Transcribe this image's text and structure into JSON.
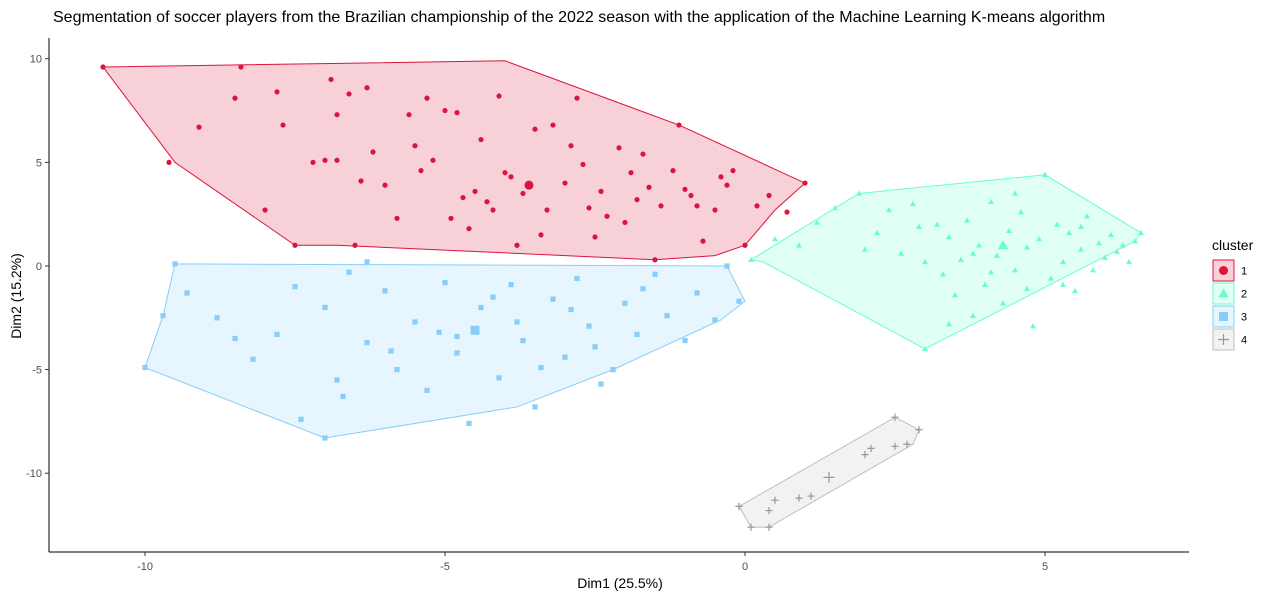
{
  "chart_data": {
    "type": "scatter",
    "title": "Segmentation of soccer players from the Brazilian championship of the 2022 season with the application of the Machine Learning K-means algorithm",
    "xlabel": "Dim1 (25.5%)",
    "ylabel": "Dim2 (15.2%)",
    "xlim": [
      -11.6,
      7.4
    ],
    "ylim": [
      -13.8,
      11.0
    ],
    "x_ticks": [
      -10,
      -5,
      0,
      5
    ],
    "x_tick_labels": [
      "-10",
      "-5",
      "0",
      "5"
    ],
    "y_ticks": [
      -10,
      -5,
      0,
      5,
      10
    ],
    "y_tick_labels": [
      "-10",
      "-5",
      "0",
      "5",
      "10"
    ],
    "grid": false,
    "legend": {
      "title": "cluster",
      "placement": "right"
    },
    "series": [
      {
        "name": "1",
        "color": "#DC143C",
        "marker": "circle",
        "hull": [
          [
            -10.7,
            9.6
          ],
          [
            -4,
            9.9
          ],
          [
            -1.1,
            6.8
          ],
          [
            1,
            4
          ],
          [
            0.5,
            2.7
          ],
          [
            0,
            1
          ],
          [
            -0.5,
            0.5
          ],
          [
            -1.5,
            0.3
          ],
          [
            -4.5,
            0.7
          ],
          [
            -6.8,
            1
          ],
          [
            -7.5,
            1
          ],
          [
            -9.5,
            5
          ]
        ],
        "centroid": [
          -3.6,
          3.9
        ],
        "points": [
          [
            -10.7,
            9.6
          ],
          [
            -9.6,
            5
          ],
          [
            -9.1,
            6.7
          ],
          [
            -8.5,
            8.1
          ],
          [
            -8.4,
            9.6
          ],
          [
            -8.0,
            2.7
          ],
          [
            -7.8,
            8.4
          ],
          [
            -7.7,
            6.8
          ],
          [
            -7.5,
            1
          ],
          [
            -7.2,
            5
          ],
          [
            -7.0,
            5.1
          ],
          [
            -6.9,
            9
          ],
          [
            -6.8,
            5.1
          ],
          [
            -6.8,
            7.3
          ],
          [
            -6.6,
            8.3
          ],
          [
            -6.5,
            1
          ],
          [
            -6.3,
            8.6
          ],
          [
            -6.2,
            5.5
          ],
          [
            -6.0,
            3.9
          ],
          [
            -5.8,
            2.3
          ],
          [
            -5.6,
            7.3
          ],
          [
            -5.5,
            5.8
          ],
          [
            -5.3,
            8.1
          ],
          [
            -5.2,
            5.1
          ],
          [
            -5.0,
            7.5
          ],
          [
            -4.8,
            7.4
          ],
          [
            -4.5,
            3.6
          ],
          [
            -4.3,
            3.1
          ],
          [
            -4.1,
            8.2
          ],
          [
            -4.0,
            4.5
          ],
          [
            -3.7,
            3.5
          ],
          [
            -3.5,
            6.6
          ],
          [
            -3.4,
            1.5
          ],
          [
            -3.2,
            6.8
          ],
          [
            -2.8,
            8.1
          ],
          [
            -2.6,
            2.8
          ],
          [
            -2.3,
            2.4
          ],
          [
            -2.1,
            5.7
          ],
          [
            -1.9,
            4.5
          ],
          [
            -1.6,
            3.8
          ],
          [
            -1.4,
            2.9
          ],
          [
            -1.1,
            6.8
          ],
          [
            -0.9,
            3.4
          ],
          [
            -0.7,
            1.2
          ],
          [
            -0.5,
            2.7
          ],
          [
            -0.3,
            3.9
          ],
          [
            0,
            1
          ],
          [
            0.2,
            2.9
          ],
          [
            0.4,
            3.4
          ],
          [
            0.7,
            2.6
          ],
          [
            1,
            4
          ],
          [
            -4.9,
            2.3
          ],
          [
            -4.4,
            6.1
          ],
          [
            -3.9,
            4.3
          ],
          [
            -3.3,
            2.7
          ],
          [
            -2.9,
            5.8
          ],
          [
            -2.4,
            3.6
          ],
          [
            -1.8,
            3.2
          ],
          [
            -1.2,
            4.6
          ],
          [
            -0.4,
            4.3
          ],
          [
            -4.6,
            1.8
          ],
          [
            -3.6,
            3.9
          ],
          [
            -2.7,
            4.9
          ],
          [
            -1.7,
            5.4
          ],
          [
            -0.8,
            2.9
          ],
          [
            -5.4,
            4.6
          ],
          [
            -4.2,
            2.7
          ],
          [
            -3.0,
            4.0
          ],
          [
            -2.0,
            2.1
          ],
          [
            -1.0,
            3.7
          ],
          [
            -6.4,
            4.1
          ],
          [
            -3.8,
            1.0
          ],
          [
            -2.5,
            1.4
          ],
          [
            -1.5,
            0.3
          ],
          [
            -0.2,
            4.6
          ],
          [
            -4.7,
            3.3
          ]
        ]
      },
      {
        "name": "2",
        "color": "#66FFCC",
        "marker": "triangle",
        "hull": [
          [
            0.1,
            0.3
          ],
          [
            1.9,
            3.5
          ],
          [
            5,
            4.4
          ],
          [
            6.6,
            1.6
          ],
          [
            6.5,
            1.2
          ],
          [
            3,
            -4
          ],
          [
            0.3,
            0.2
          ]
        ],
        "centroid": [
          4.3,
          1.0
        ],
        "points": [
          [
            0.1,
            0.3
          ],
          [
            0.5,
            1.3
          ],
          [
            0.9,
            1.0
          ],
          [
            1.2,
            2.1
          ],
          [
            1.5,
            2.8
          ],
          [
            1.9,
            3.5
          ],
          [
            2.2,
            1.6
          ],
          [
            2.4,
            2.7
          ],
          [
            2.6,
            0.6
          ],
          [
            2.8,
            3.0
          ],
          [
            3.0,
            -4.0
          ],
          [
            3.2,
            2.0
          ],
          [
            3.3,
            -0.4
          ],
          [
            3.4,
            1.4
          ],
          [
            3.5,
            -1.4
          ],
          [
            3.6,
            0.3
          ],
          [
            3.7,
            2.2
          ],
          [
            3.8,
            -2.4
          ],
          [
            3.9,
            1.0
          ],
          [
            4.0,
            -0.9
          ],
          [
            4.1,
            3.1
          ],
          [
            4.2,
            0.5
          ],
          [
            4.3,
            -1.8
          ],
          [
            4.4,
            1.7
          ],
          [
            4.5,
            -0.2
          ],
          [
            4.6,
            2.6
          ],
          [
            4.7,
            0.9
          ],
          [
            4.8,
            -2.9
          ],
          [
            4.9,
            1.3
          ],
          [
            5.0,
            4.4
          ],
          [
            5.1,
            -0.6
          ],
          [
            5.2,
            2.0
          ],
          [
            5.3,
            0.2
          ],
          [
            5.4,
            1.6
          ],
          [
            5.5,
            -1.2
          ],
          [
            5.6,
            0.8
          ],
          [
            5.7,
            2.4
          ],
          [
            5.8,
            -0.2
          ],
          [
            5.9,
            1.1
          ],
          [
            6.0,
            0.4
          ],
          [
            6.1,
            1.5
          ],
          [
            6.2,
            0.7
          ],
          [
            6.3,
            1.0
          ],
          [
            6.4,
            0.2
          ],
          [
            6.5,
            1.2
          ],
          [
            6.6,
            1.6
          ],
          [
            2.0,
            0.8
          ],
          [
            2.9,
            1.9
          ],
          [
            3.8,
            0.6
          ],
          [
            4.7,
            -1.1
          ],
          [
            5.6,
            1.9
          ],
          [
            3.4,
            -2.8
          ],
          [
            4.5,
            3.5
          ],
          [
            5.3,
            -0.9
          ],
          [
            3.0,
            0.2
          ],
          [
            4.1,
            -0.3
          ]
        ]
      },
      {
        "name": "3",
        "color": "#87CEFA",
        "marker": "square",
        "hull": [
          [
            -9.5,
            0.1
          ],
          [
            -0.3,
            0
          ],
          [
            0,
            -1.7
          ],
          [
            -0.4,
            -2.6
          ],
          [
            -2.2,
            -5
          ],
          [
            -3.8,
            -6.8
          ],
          [
            -7,
            -8.3
          ],
          [
            -10,
            -4.9
          ],
          [
            -9.7,
            -2.4
          ]
        ],
        "centroid": [
          -4.5,
          -3.1
        ],
        "points": [
          [
            -9.5,
            0.1
          ],
          [
            -9.7,
            -2.4
          ],
          [
            -10,
            -4.9
          ],
          [
            -9.3,
            -1.3
          ],
          [
            -8.5,
            -3.5
          ],
          [
            -8.2,
            -4.5
          ],
          [
            -7.8,
            -3.3
          ],
          [
            -7.4,
            -7.4
          ],
          [
            -7.0,
            -2.0
          ],
          [
            -7.0,
            -8.3
          ],
          [
            -6.8,
            -5.5
          ],
          [
            -6.6,
            -0.3
          ],
          [
            -6.3,
            -3.7
          ],
          [
            -6.0,
            -1.2
          ],
          [
            -5.8,
            -5.0
          ],
          [
            -5.5,
            -2.7
          ],
          [
            -5.3,
            -6.0
          ],
          [
            -5.0,
            -0.8
          ],
          [
            -4.8,
            -4.2
          ],
          [
            -4.6,
            -7.6
          ],
          [
            -4.4,
            -2.0
          ],
          [
            -4.1,
            -5.4
          ],
          [
            -3.9,
            -0.9
          ],
          [
            -3.7,
            -3.6
          ],
          [
            -3.5,
            -6.8
          ],
          [
            -3.2,
            -1.6
          ],
          [
            -3.0,
            -4.4
          ],
          [
            -2.8,
            -0.6
          ],
          [
            -2.6,
            -2.9
          ],
          [
            -2.4,
            -5.7
          ],
          [
            -2.2,
            -5.0
          ],
          [
            -2.0,
            -1.8
          ],
          [
            -1.8,
            -3.3
          ],
          [
            -1.5,
            -0.4
          ],
          [
            -1.3,
            -2.4
          ],
          [
            -1.0,
            -3.6
          ],
          [
            -0.8,
            -1.3
          ],
          [
            -0.5,
            -2.6
          ],
          [
            -0.3,
            0
          ],
          [
            -0.1,
            -1.7
          ],
          [
            -6.3,
            0.2
          ],
          [
            -5.1,
            -3.2
          ],
          [
            -3.8,
            -2.7
          ],
          [
            -2.9,
            -2.1
          ],
          [
            -4.8,
            -3.4
          ],
          [
            -5.9,
            -4.1
          ],
          [
            -2.5,
            -3.9
          ],
          [
            -4.2,
            -1.5
          ],
          [
            -3.4,
            -4.9
          ],
          [
            -1.7,
            -1.1
          ],
          [
            -7.5,
            -1.0
          ],
          [
            -8.8,
            -2.5
          ],
          [
            -6.7,
            -6.3
          ],
          [
            -4.5,
            -3.1
          ]
        ]
      },
      {
        "name": "4",
        "color": "#BEBEBE",
        "marker": "cross",
        "hull": [
          [
            -0.1,
            -11.6
          ],
          [
            0.1,
            -12.6
          ],
          [
            0.4,
            -12.6
          ],
          [
            2.8,
            -8.6
          ],
          [
            2.9,
            -7.9
          ],
          [
            2.5,
            -7.3
          ]
        ],
        "centroid": [
          1.4,
          -10.2
        ],
        "points": [
          [
            -0.1,
            -11.6
          ],
          [
            0.1,
            -12.6
          ],
          [
            0.4,
            -12.6
          ],
          [
            0.4,
            -11.8
          ],
          [
            0.5,
            -11.3
          ],
          [
            0.9,
            -11.2
          ],
          [
            1.1,
            -11.1
          ],
          [
            2.0,
            -9.1
          ],
          [
            2.1,
            -8.8
          ],
          [
            2.5,
            -8.7
          ],
          [
            2.5,
            -7.3
          ],
          [
            2.7,
            -8.6
          ],
          [
            2.9,
            -7.9
          ]
        ]
      }
    ]
  }
}
